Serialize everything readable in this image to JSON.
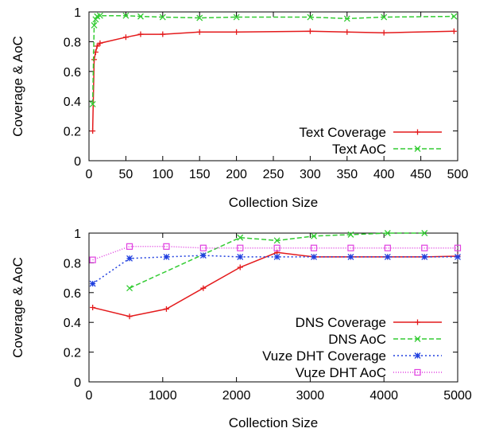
{
  "chart_data": [
    {
      "type": "line",
      "xlabel": "Collection Size",
      "ylabel": "Coverage & AoC",
      "xlim": [
        0,
        500
      ],
      "ylim": [
        0,
        1
      ],
      "xticks": [
        "0",
        "50",
        "100",
        "150",
        "200",
        "250",
        "300",
        "350",
        "400",
        "450",
        "500"
      ],
      "yticks": [
        "0",
        "0.2",
        "0.4",
        "0.6",
        "0.8",
        "1"
      ],
      "grid": false,
      "legend_position": "bottom-right",
      "series": [
        {
          "name": "Text Coverage",
          "color": "#e41a1c",
          "dash": "solid",
          "marker": "plus",
          "x": [
            5,
            7,
            9,
            11,
            15,
            50,
            70,
            100,
            150,
            200,
            300,
            350,
            400,
            495
          ],
          "y": [
            0.2,
            0.68,
            0.73,
            0.77,
            0.79,
            0.83,
            0.85,
            0.85,
            0.865,
            0.865,
            0.87,
            0.865,
            0.86,
            0.87
          ]
        },
        {
          "name": "Text AoC",
          "color": "#33cc33",
          "dash": "dashed",
          "marker": "cross",
          "x": [
            5,
            7,
            9,
            11,
            15,
            50,
            70,
            100,
            150,
            200,
            300,
            350,
            400,
            495
          ],
          "y": [
            0.38,
            0.91,
            0.95,
            0.97,
            0.975,
            0.975,
            0.97,
            0.965,
            0.96,
            0.965,
            0.965,
            0.955,
            0.965,
            0.97
          ]
        }
      ]
    },
    {
      "type": "line",
      "xlabel": "Collection Size",
      "ylabel": "Coverage & AoC",
      "xlim": [
        0,
        5000
      ],
      "ylim": [
        0,
        1
      ],
      "xticks": [
        "0",
        "1000",
        "2000",
        "3000",
        "4000",
        "5000"
      ],
      "yticks": [
        "0",
        "0.2",
        "0.4",
        "0.6",
        "0.8",
        "1"
      ],
      "grid": false,
      "legend_position": "bottom-right",
      "series": [
        {
          "name": "DNS Coverage",
          "color": "#e41a1c",
          "dash": "solid",
          "marker": "plus",
          "x": [
            50,
            550,
            1050,
            1550,
            2050,
            2550,
            3050,
            3550,
            4050,
            4550,
            5000
          ],
          "y": [
            0.5,
            0.44,
            0.49,
            0.63,
            0.77,
            0.87,
            0.84,
            0.84,
            0.84,
            0.84,
            0.845
          ]
        },
        {
          "name": "DNS AoC",
          "color": "#33cc33",
          "dash": "dashed",
          "marker": "cross",
          "x": [
            550,
            2050,
            2550,
            3050,
            3550,
            4050,
            4550
          ],
          "y": [
            0.63,
            0.97,
            0.95,
            0.98,
            0.99,
            1.0,
            1.0
          ]
        },
        {
          "name": "Vuze DHT Coverage",
          "color": "#1f3fdf",
          "dash": "dotted",
          "marker": "star",
          "x": [
            50,
            550,
            1050,
            1550,
            2050,
            2550,
            3050,
            3550,
            4050,
            4550,
            5000
          ],
          "y": [
            0.66,
            0.83,
            0.84,
            0.85,
            0.84,
            0.84,
            0.84,
            0.84,
            0.84,
            0.84,
            0.84
          ]
        },
        {
          "name": "Vuze DHT AoC",
          "color": "#e040e0",
          "dash": "dotdense",
          "marker": "square",
          "x": [
            50,
            550,
            1050,
            1550,
            2050,
            2550,
            3050,
            3550,
            4050,
            4550,
            5000
          ],
          "y": [
            0.82,
            0.91,
            0.91,
            0.9,
            0.9,
            0.9,
            0.9,
            0.9,
            0.9,
            0.9,
            0.9
          ]
        }
      ]
    }
  ]
}
